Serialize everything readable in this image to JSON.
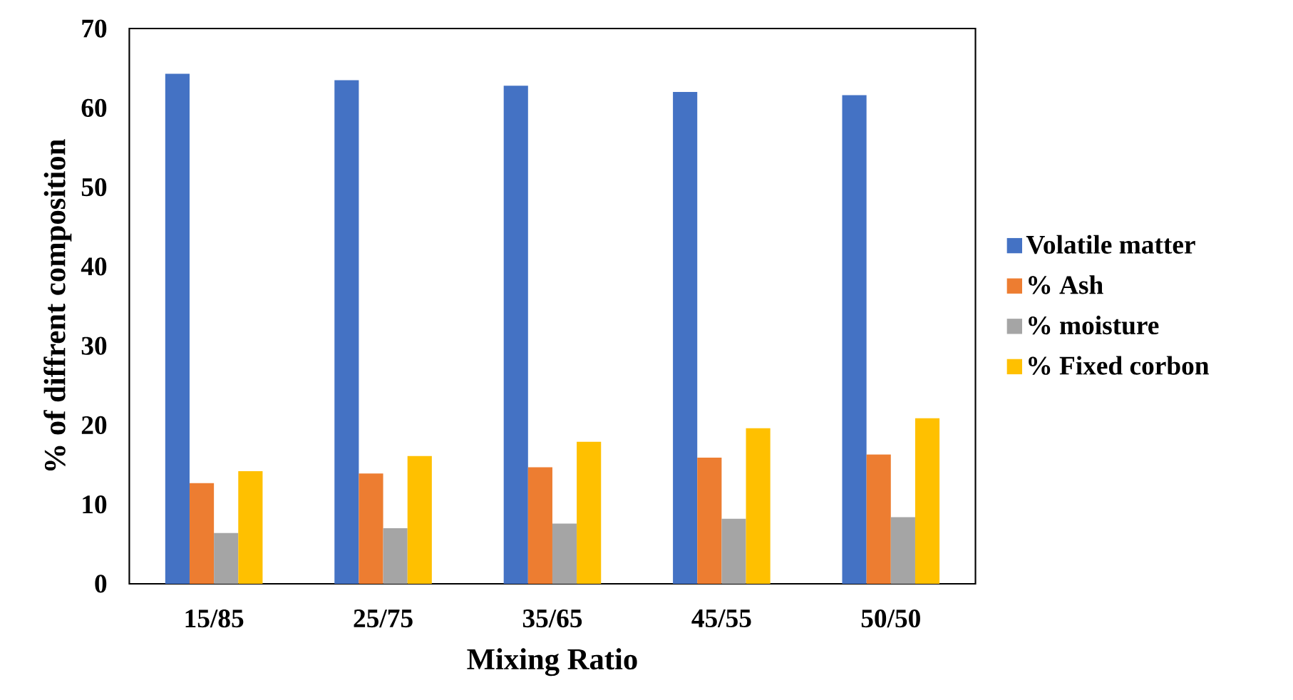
{
  "chart_data": {
    "type": "bar",
    "xlabel": "Mixing Ratio",
    "ylabel": "% of diffrent composition",
    "categories": [
      "15/85",
      "25/75",
      "35/65",
      "45/55",
      "50/50"
    ],
    "series": [
      {
        "name": "Volatile matter",
        "color": "#4472c4",
        "values": [
          64.3,
          63.5,
          62.8,
          62.0,
          61.6
        ]
      },
      {
        "name": "% Ash",
        "color": "#ed7d31",
        "values": [
          12.7,
          13.9,
          14.7,
          15.9,
          16.3
        ]
      },
      {
        "name": "% moisture",
        "color": "#a5a5a5",
        "values": [
          6.4,
          7.0,
          7.6,
          8.2,
          8.4
        ]
      },
      {
        "name": "% Fixed corbon",
        "color": "#ffc000",
        "values": [
          14.2,
          16.1,
          17.9,
          19.6,
          20.9
        ]
      }
    ],
    "ylim": [
      0,
      70
    ],
    "yticks": [
      0,
      10,
      20,
      30,
      40,
      50,
      60,
      70
    ],
    "legend": "right",
    "grid": false
  }
}
